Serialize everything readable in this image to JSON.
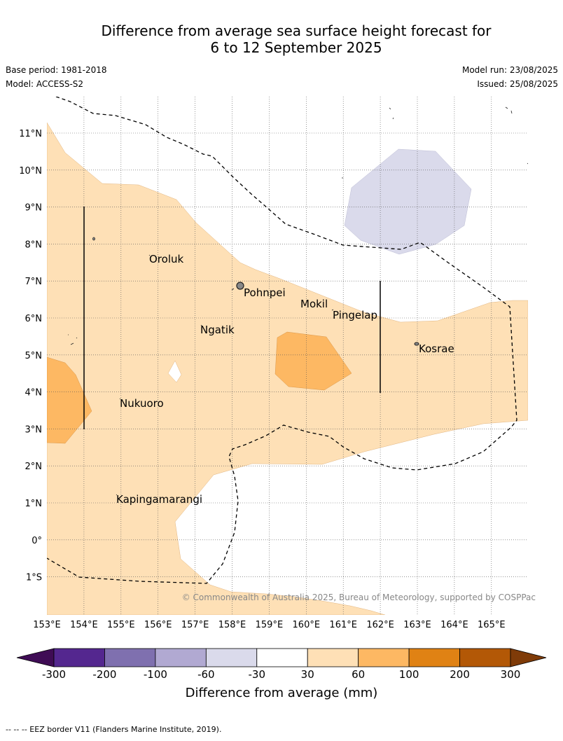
{
  "title_line1": "Difference from average sea surface height forecast for",
  "title_line2": "6 to 12 September 2025",
  "base_period": "Base period: 1981-2018",
  "model": "Model: ACCESS-S2",
  "model_run": "Model run: 23/08/2025",
  "issued": "Issued: 25/08/2025",
  "copyright": "© Commonwealth of Australia 2025, Bureau of Meteorology, supported by COSPPac",
  "lon_labels": [
    "153°E",
    "154°E",
    "155°E",
    "156°E",
    "157°E",
    "158°E",
    "159°E",
    "160°E",
    "161°E",
    "162°E",
    "163°E",
    "164°E",
    "165°E"
  ],
  "lat_labels": [
    "11°N",
    "10°N",
    "9°N",
    "8°N",
    "7°N",
    "6°N",
    "5°N",
    "4°N",
    "3°N",
    "2°N",
    "1°N",
    "0°",
    "1°S"
  ],
  "places": [
    {
      "name": "Oroluk"
    },
    {
      "name": "Pohnpei"
    },
    {
      "name": "Mokil"
    },
    {
      "name": "Pingelap"
    },
    {
      "name": "Ngatik"
    },
    {
      "name": "Kosrae"
    },
    {
      "name": "Nukuoro"
    },
    {
      "name": "Kapingamarangi"
    }
  ],
  "colorbar": {
    "label": "Difference from average (mm)",
    "ticks": [
      "-300",
      "-200",
      "-100",
      "-60",
      "-30",
      "30",
      "60",
      "100",
      "200",
      "300"
    ],
    "colors": [
      "#3f0c55",
      "#54278f",
      "#7f70af",
      "#b1a9d2",
      "#dadaeb",
      "#ffffff",
      "#fee0b6",
      "#fdb863",
      "#e08214",
      "#b35806",
      "#7f3b08"
    ]
  },
  "footer": "-- -- -- EEZ border V11 (Flanders Marine Institute, 2019)."
}
